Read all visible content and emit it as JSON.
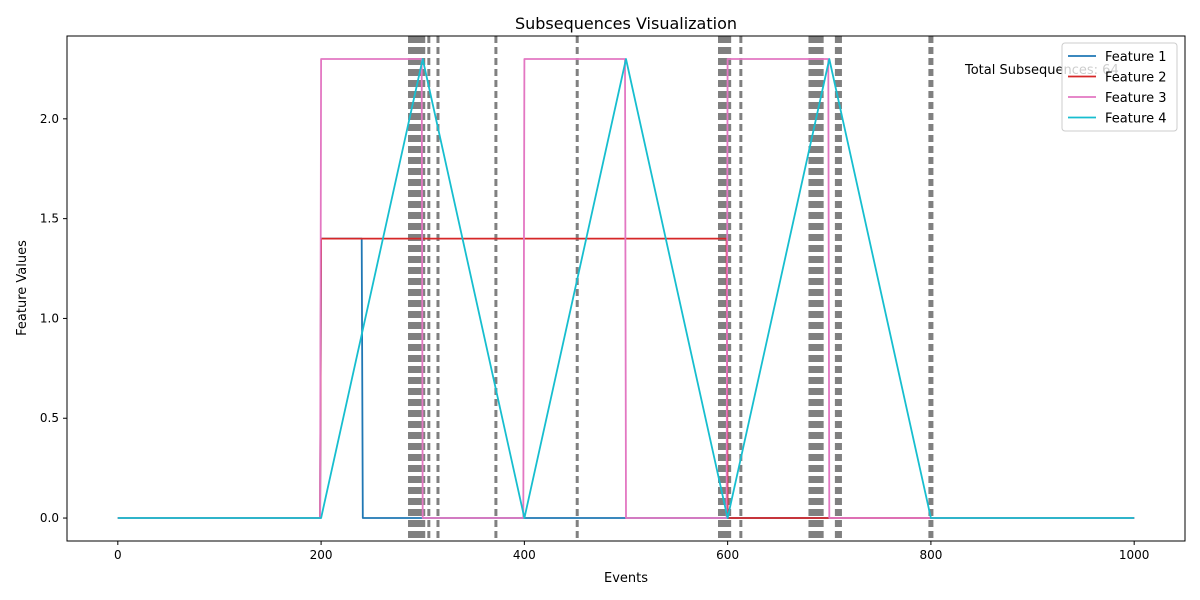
{
  "chart_data": {
    "type": "line",
    "title": "Subsequences Visualization",
    "xlabel": "Events",
    "ylabel": "Feature Values",
    "xlim": [
      -50,
      1050
    ],
    "ylim": [
      -0.115,
      2.415
    ],
    "x_ticks": [
      0,
      200,
      400,
      600,
      800,
      1000
    ],
    "x_tick_labels": [
      "0",
      "200",
      "400",
      "600",
      "800",
      "1000"
    ],
    "y_ticks": [
      0.0,
      0.5,
      1.0,
      1.5,
      2.0
    ],
    "y_tick_labels": [
      "0.0",
      "0.5",
      "1.0",
      "1.5",
      "2.0"
    ],
    "grid": false,
    "legend_position": "top-right",
    "annotation": "Total Subsequences: 64",
    "series": [
      {
        "name": "Feature 1",
        "color": "#1f77b4",
        "x": [
          0,
          199,
          200,
          240,
          241,
          1000
        ],
        "y": [
          0,
          0,
          1.4,
          1.4,
          0,
          0
        ]
      },
      {
        "name": "Feature 2",
        "color": "#d62728",
        "x": [
          0,
          199,
          200,
          599,
          600,
          1000
        ],
        "y": [
          0,
          0,
          1.4,
          1.4,
          0,
          0
        ]
      },
      {
        "name": "Feature 3",
        "color": "#e377c2",
        "x": [
          0,
          199,
          200,
          299,
          300,
          399,
          400,
          499,
          500,
          599,
          600,
          699,
          700,
          1000
        ],
        "y": [
          0,
          0,
          2.3,
          2.3,
          0,
          0,
          2.3,
          2.3,
          0,
          0,
          2.3,
          2.3,
          0,
          0
        ]
      },
      {
        "name": "Feature 4",
        "color": "#17becf",
        "x": [
          0,
          200,
          300,
          400,
          500,
          600,
          700,
          800,
          1000
        ],
        "y": [
          0,
          0,
          2.3,
          0,
          2.3,
          0,
          2.3,
          0,
          0
        ]
      }
    ],
    "boundaries": [
      287,
      289,
      291,
      293,
      295,
      297,
      299,
      301,
      306,
      315,
      372,
      452,
      592,
      594,
      596,
      598,
      600,
      602,
      613,
      681,
      683,
      685,
      687,
      689,
      691,
      693,
      707,
      709,
      711,
      799,
      801
    ],
    "boundary_color": "#808080"
  }
}
